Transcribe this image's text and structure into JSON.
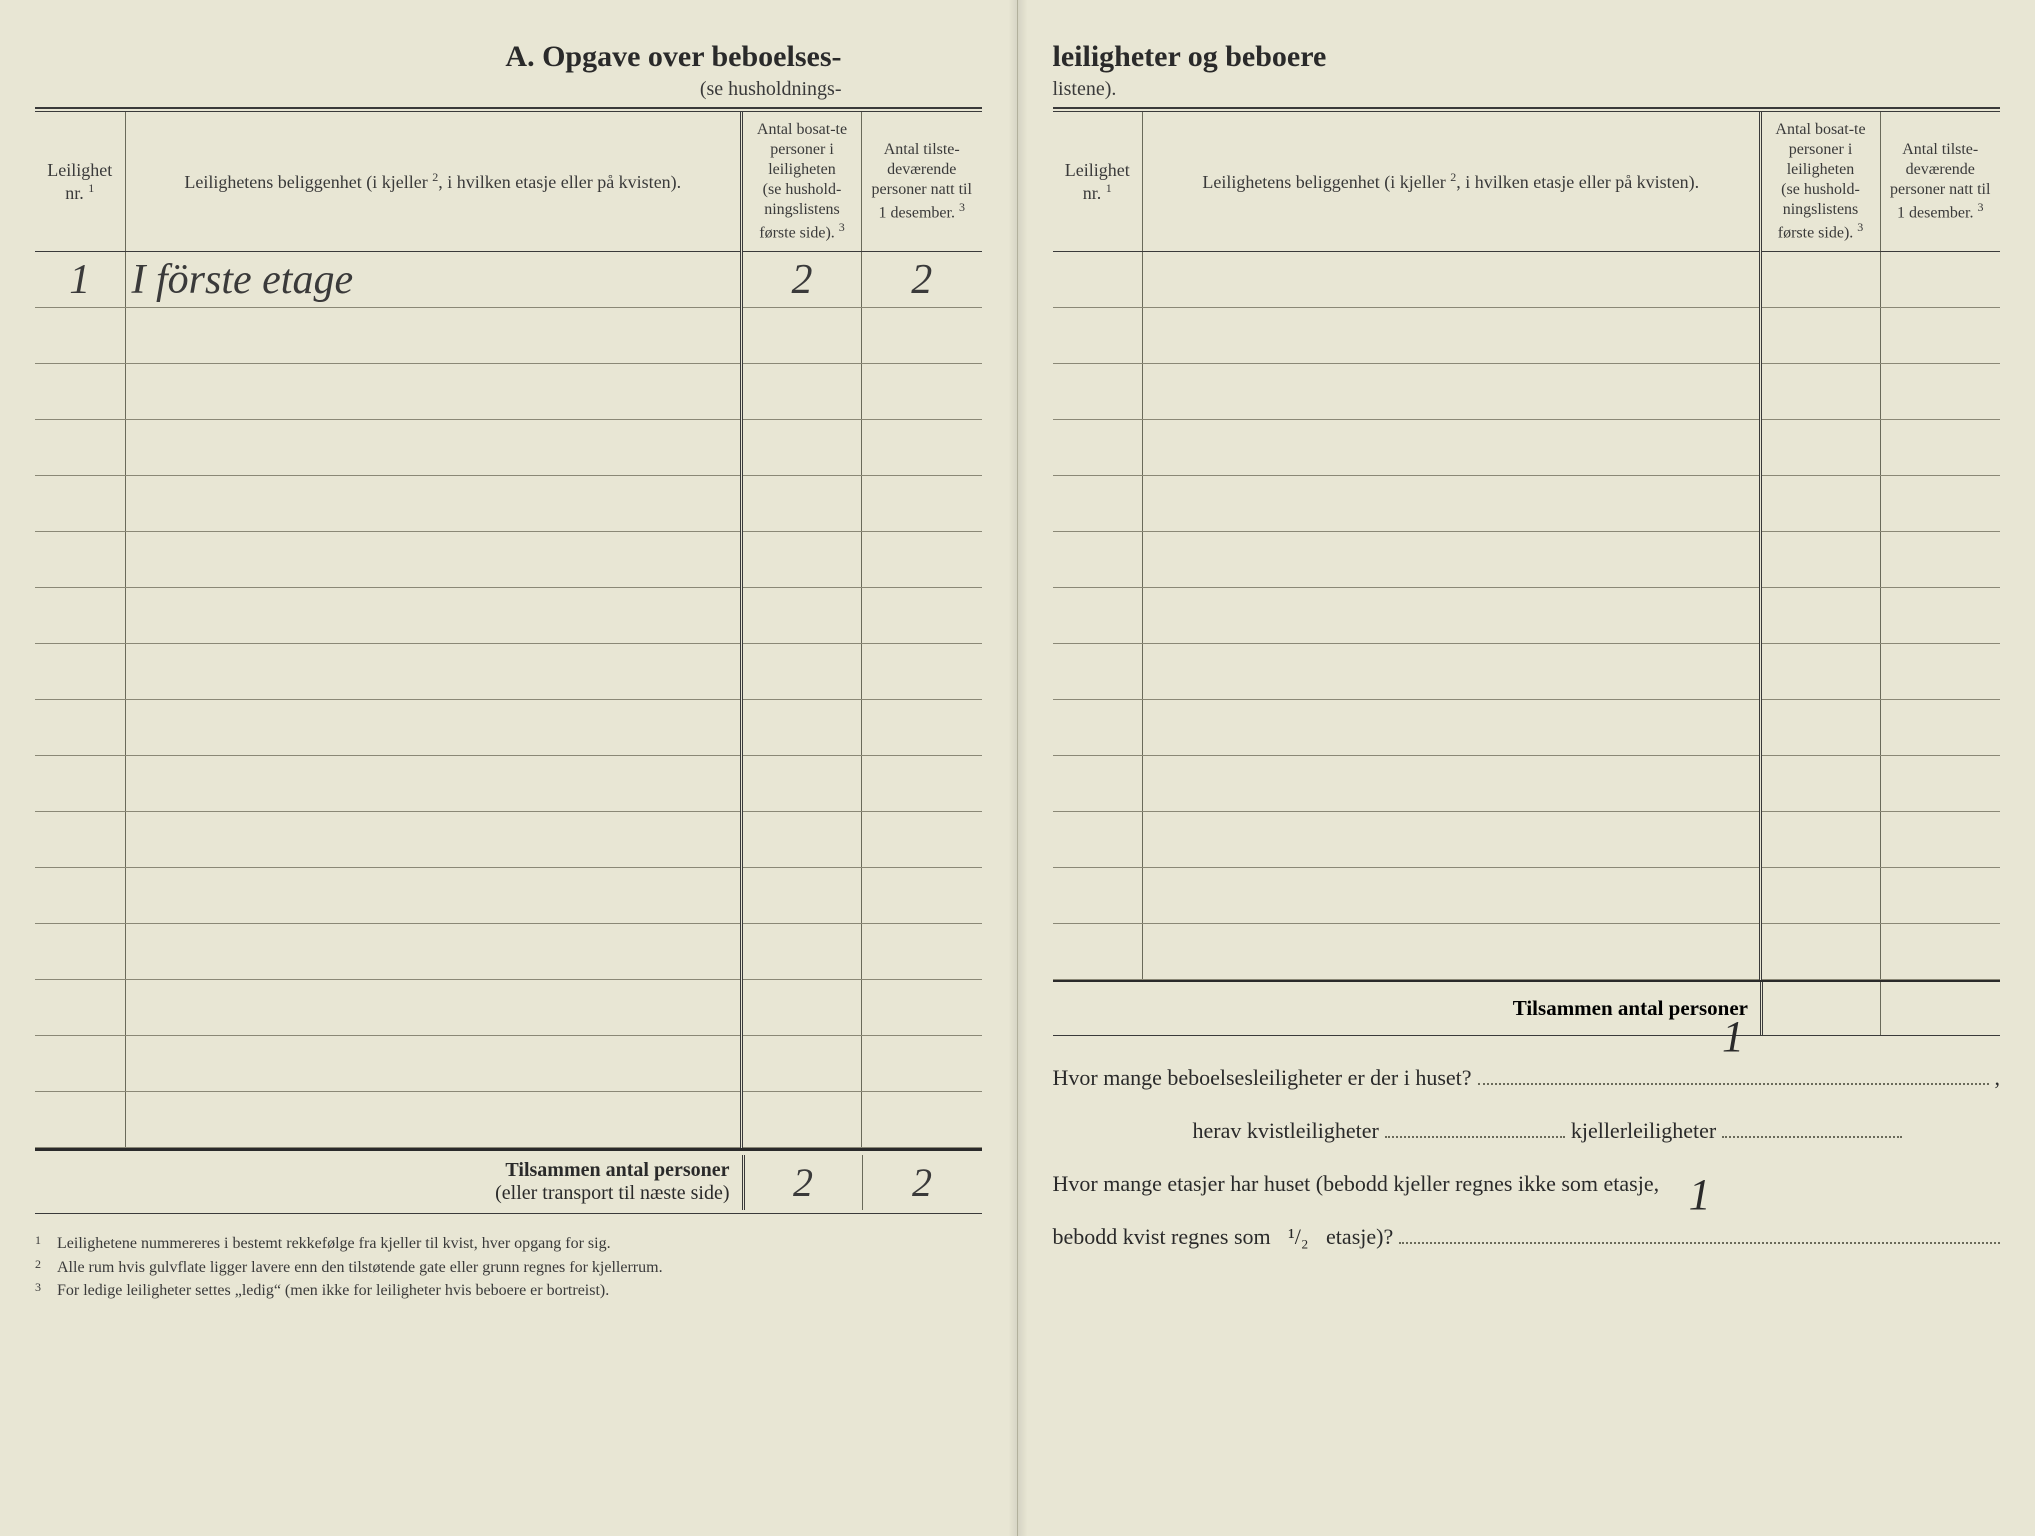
{
  "title_left": "A.   Opgave over beboelses-",
  "title_right": "leiligheter og beboere",
  "subtitle_left": "(se husholdnings-",
  "subtitle_right": "listene).",
  "columns": {
    "nr": "Leilighet nr.",
    "nr_sup": "1",
    "loc": "Leilighetens beliggenhet (i kjeller",
    "loc_sup": "2",
    "loc_tail": ", i hvilken etasje eller på kvisten).",
    "n1_a": "Antal bosat-te personer i leiligheten",
    "n1_b": "(se hushold-ningslistens første side).",
    "n1_sup": "3",
    "n2_a": "Antal tilste-deværende personer natt til 1 desember.",
    "n2_sup": "3"
  },
  "rows_left": [
    {
      "nr": "1",
      "loc": "I förste etage",
      "n1": "2",
      "n2": "2"
    },
    {},
    {},
    {},
    {},
    {},
    {},
    {},
    {},
    {},
    {},
    {},
    {},
    {},
    {},
    {}
  ],
  "rows_right": [
    {},
    {},
    {},
    {},
    {},
    {},
    {},
    {},
    {},
    {},
    {},
    {},
    {}
  ],
  "sum_label_bold": "Tilsammen antal personer",
  "sum_label_sub": "(eller transport til næste side)",
  "sum_left": {
    "n1": "2",
    "n2": "2"
  },
  "sum_right_label": "Tilsammen antal personer",
  "footnotes": [
    "Leilighetene nummereres i bestemt rekkefølge fra kjeller til kvist, hver opgang for sig.",
    "Alle rum hvis gulvflate ligger lavere enn den tilstøtende gate eller grunn regnes for kjellerrum.",
    "For ledige leiligheter settes „ledig“ (men ikke for leiligheter hvis beboere er bortreist)."
  ],
  "questions": {
    "q1_a": "Hvor mange beboelsesleiligheter er der i huset?",
    "q1_val": "1",
    "q1_tail": ",",
    "q2_a": "herav kvistleiligheter",
    "q2_b": "kjellerleiligheter",
    "q3_a": "Hvor mange etasjer har huset (bebodd kjeller regnes ikke som etasje,",
    "q3_b": "bebodd kvist regnes som",
    "q3_frac": "¹/₂",
    "q3_c": "etasje)?",
    "q3_val": "1"
  },
  "colors": {
    "paper": "#e8e6d4",
    "ink": "#2a2a2a",
    "rule": "#3a3a3a",
    "faint_rule": "#8a8876"
  }
}
